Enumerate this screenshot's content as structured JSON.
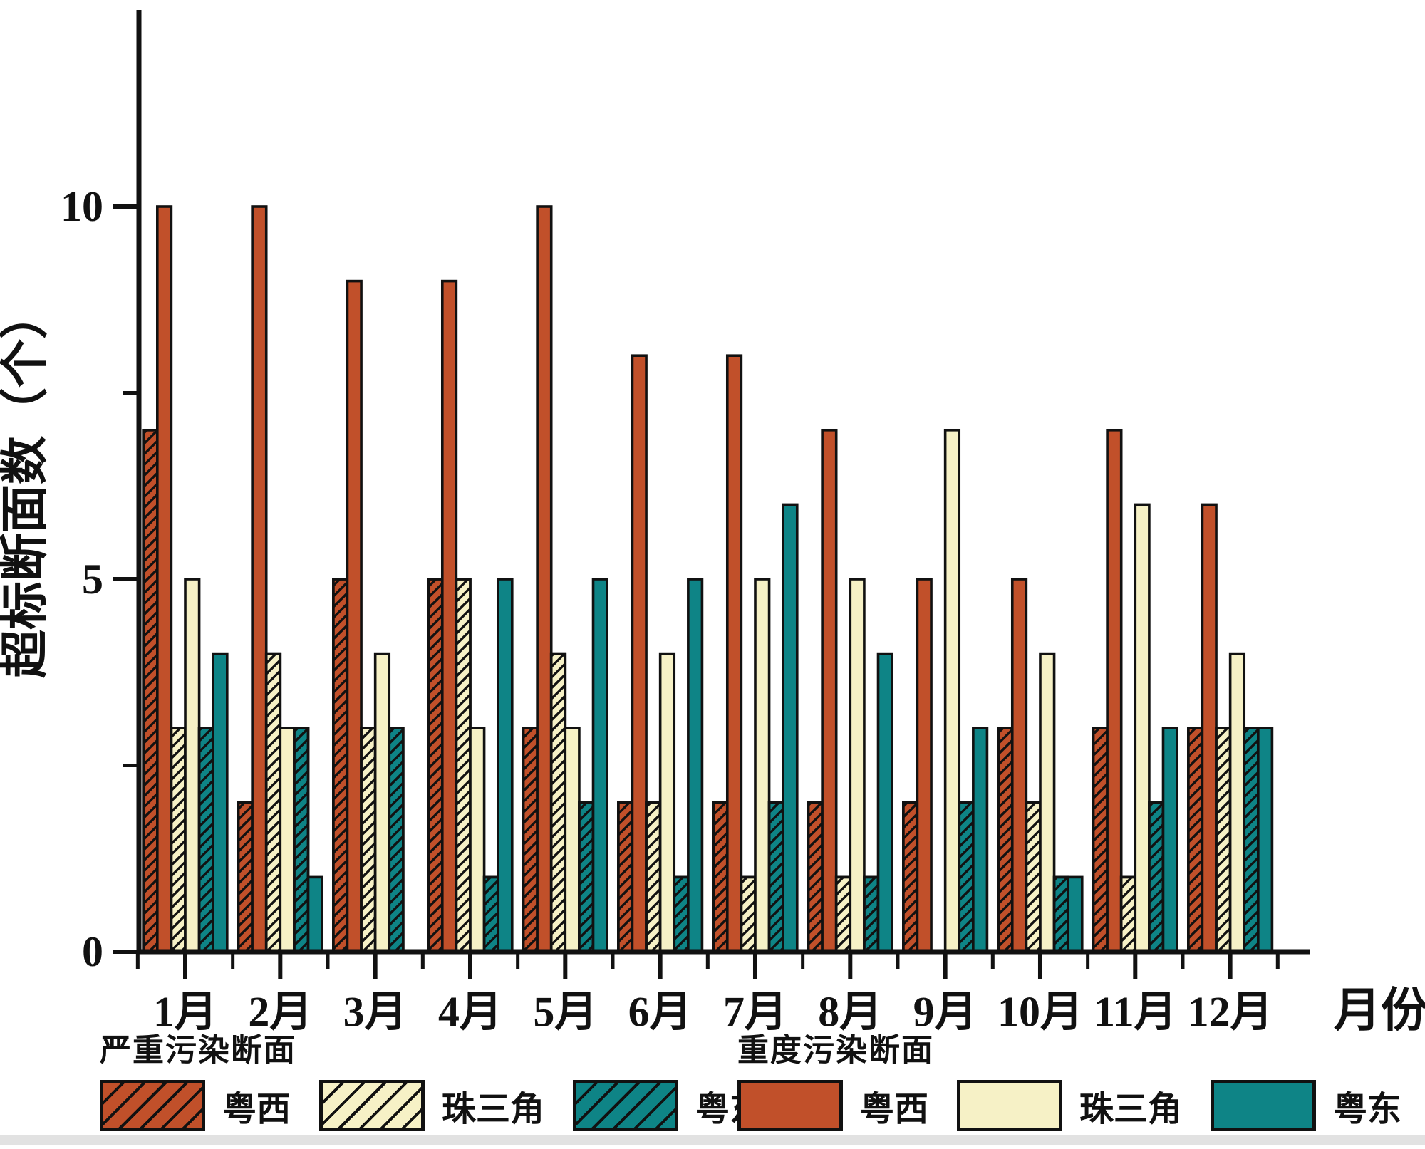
{
  "chart_data": {
    "type": "bar",
    "title": "",
    "xlabel": "月份",
    "ylabel": "超标断面数（个）",
    "categories": [
      "1月",
      "2月",
      "3月",
      "4月",
      "5月",
      "6月",
      "7月",
      "8月",
      "9月",
      "10月",
      "11月",
      "12月"
    ],
    "y_axis": {
      "tick_labels": [
        "0",
        "5",
        "10"
      ],
      "major_ticks": [
        0,
        5,
        10
      ],
      "minor_ticks": [
        2.5,
        7.5
      ],
      "ylim": [
        0,
        12.6
      ],
      "grid": false
    },
    "legend_position": "bottom",
    "series": [
      {
        "name": "严重污染断面 粤西",
        "group": "严重污染断面",
        "region": "粤西",
        "style": "hatched",
        "color": "#c1502a",
        "values": [
          7,
          2,
          5,
          5,
          3,
          2,
          2,
          2,
          2,
          3,
          3,
          3
        ]
      },
      {
        "name": "重度污染断面 粤西",
        "group": "重度污染断面",
        "region": "粤西",
        "style": "solid",
        "color": "#c1502a",
        "values": [
          10,
          10,
          9,
          9,
          10,
          8,
          8,
          7,
          5,
          5,
          7,
          6
        ]
      },
      {
        "name": "严重污染断面 珠三角",
        "group": "严重污染断面",
        "region": "珠三角",
        "style": "hatched",
        "color": "#f6f1c6",
        "values": [
          3,
          4,
          3,
          5,
          4,
          2,
          1,
          1,
          0,
          2,
          1,
          3
        ]
      },
      {
        "name": "重度污染断面 珠三角",
        "group": "重度污染断面",
        "region": "珠三角",
        "style": "solid",
        "color": "#f6f1c6",
        "values": [
          5,
          3,
          4,
          3,
          3,
          4,
          5,
          5,
          7,
          4,
          6,
          4
        ]
      },
      {
        "name": "严重污染断面 粤东",
        "group": "严重污染断面",
        "region": "粤东",
        "style": "hatched",
        "color": "#0e8486",
        "values": [
          3,
          3,
          3,
          1,
          2,
          1,
          2,
          1,
          2,
          1,
          2,
          3
        ]
      },
      {
        "name": "重度污染断面 粤东",
        "group": "重度污染断面",
        "region": "粤东",
        "style": "solid",
        "color": "#0e8486",
        "values": [
          4,
          1,
          0,
          5,
          5,
          5,
          6,
          4,
          3,
          1,
          3,
          3
        ]
      }
    ]
  },
  "legend": {
    "severe": {
      "title": "严重污染断面",
      "items": [
        {
          "label": "粤西",
          "color": "#c1502a",
          "style": "hatched"
        },
        {
          "label": "珠三角",
          "color": "#f6f1c6",
          "style": "hatched"
        },
        {
          "label": "粤东",
          "color": "#0e8486",
          "style": "hatched"
        }
      ]
    },
    "heavy": {
      "title": "重度污染断面",
      "items": [
        {
          "label": "粤西",
          "color": "#c1502a",
          "style": "solid"
        },
        {
          "label": "珠三角",
          "color": "#f6f1c6",
          "style": "solid"
        },
        {
          "label": "粤东",
          "color": "#0e8486",
          "style": "solid"
        }
      ]
    }
  },
  "colors": {
    "yuexi": "#c1502a",
    "zhusanjiao": "#f6f1c6",
    "yuedong": "#0e8486",
    "outline": "#111111",
    "axis": "#111111"
  }
}
